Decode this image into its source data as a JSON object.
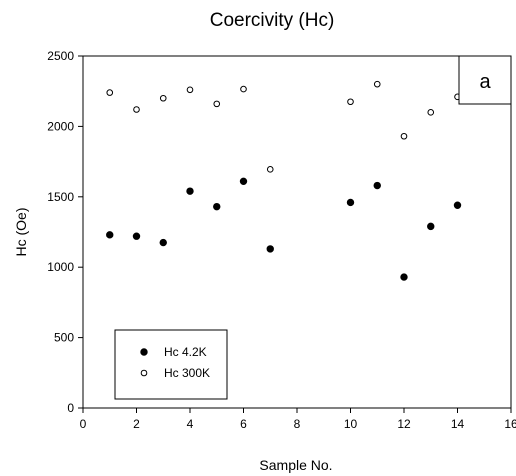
{
  "chart_data": {
    "type": "scatter",
    "title": "Coercivity (Hc)",
    "xlabel": "Sample No.",
    "ylabel": "Hc (Oe)",
    "xlim": [
      0,
      16
    ],
    "ylim": [
      0,
      2500
    ],
    "x_ticks": [
      0,
      2,
      4,
      6,
      8,
      10,
      12,
      14,
      16
    ],
    "y_ticks": [
      0,
      500,
      1000,
      1500,
      2000,
      2500
    ],
    "grid": false,
    "legend_position": "bottom-left",
    "annotation": "a",
    "series": [
      {
        "name": "Hc 4.2K",
        "marker": "filled-circle",
        "color": "#000000",
        "x": [
          1,
          2,
          3,
          4,
          5,
          6,
          7,
          10,
          11,
          12,
          13,
          14
        ],
        "y": [
          1230,
          1220,
          1175,
          1540,
          1430,
          1610,
          1130,
          1460,
          1580,
          930,
          1290,
          1440
        ]
      },
      {
        "name": "Hc 300K",
        "marker": "open-circle",
        "color": "#000000",
        "x": [
          1,
          2,
          3,
          4,
          5,
          6,
          7,
          10,
          11,
          12,
          13,
          14
        ],
        "y": [
          2240,
          2120,
          2200,
          2260,
          2160,
          2265,
          1695,
          2175,
          2300,
          1930,
          2100,
          2210
        ]
      }
    ]
  }
}
